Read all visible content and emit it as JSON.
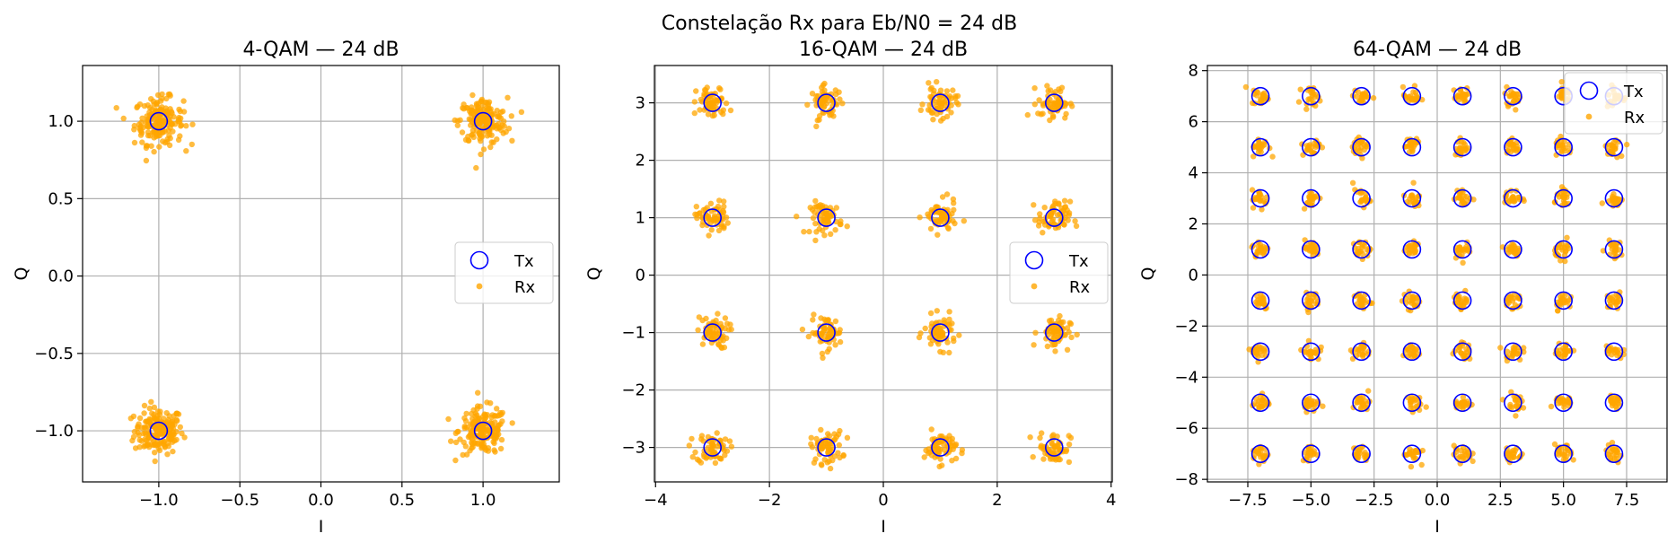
{
  "figure_title": "Constelação Rx para Eb/N0 = 24 dB",
  "chart_data": [
    {
      "type": "scatter",
      "title": "4-QAM — 24 dB",
      "xlabel": "I",
      "ylabel": "Q",
      "xlim": [
        -1.47,
        1.47
      ],
      "ylim": [
        -1.33,
        1.36
      ],
      "xticks": [
        -1.0,
        -0.5,
        0.0,
        0.5,
        1.0
      ],
      "xtick_labels": [
        "−1.0",
        "−0.5",
        "0.0",
        "0.5",
        "1.0"
      ],
      "yticks": [
        -1.0,
        -0.5,
        0.0,
        0.5,
        1.0
      ],
      "ytick_labels": [
        "−1.0",
        "−0.5",
        "0.0",
        "0.5",
        "1.0"
      ],
      "grid": true,
      "legend_position": "center-right",
      "tx_levels": [
        -1,
        1
      ],
      "rx_spread": 0.075,
      "series": [
        {
          "name": "Tx",
          "marker": "open-circle",
          "color": "#0000ff"
        },
        {
          "name": "Rx",
          "marker": "dot",
          "color": "#ffa500"
        }
      ]
    },
    {
      "type": "scatter",
      "title": "16-QAM — 24 dB",
      "xlabel": "I",
      "ylabel": "Q",
      "xlim": [
        -4.02,
        4.02
      ],
      "ylim": [
        -3.6,
        3.65
      ],
      "xticks": [
        -4,
        -2,
        0,
        2,
        4
      ],
      "xtick_labels": [
        "−4",
        "−2",
        "0",
        "2",
        "4"
      ],
      "yticks": [
        -3,
        -2,
        -1,
        0,
        1,
        2,
        3
      ],
      "ytick_labels": [
        "−3",
        "−2",
        "−1",
        "0",
        "1",
        "2",
        "3"
      ],
      "grid": true,
      "legend_position": "center-right",
      "tx_levels": [
        -3,
        -1,
        1,
        3
      ],
      "rx_spread": 0.14,
      "series": [
        {
          "name": "Tx",
          "marker": "open-circle",
          "color": "#0000ff"
        },
        {
          "name": "Rx",
          "marker": "dot",
          "color": "#ffa500"
        }
      ]
    },
    {
      "type": "scatter",
      "title": "64-QAM — 24 dB",
      "xlabel": "I",
      "ylabel": "Q",
      "xlim": [
        -9.1,
        9.1
      ],
      "ylim": [
        -8.1,
        8.2
      ],
      "xticks": [
        -7.5,
        -5.0,
        -2.5,
        0.0,
        2.5,
        5.0,
        7.5
      ],
      "xtick_labels": [
        "−7.5",
        "−5.0",
        "−2.5",
        "0.0",
        "2.5",
        "5.0",
        "7.5"
      ],
      "yticks": [
        -8,
        -6,
        -4,
        -2,
        0,
        2,
        4,
        6,
        8
      ],
      "ytick_labels": [
        "−8",
        "−6",
        "−4",
        "−2",
        "0",
        "2",
        "4",
        "6",
        "8"
      ],
      "grid": true,
      "legend_position": "upper-right",
      "tx_levels": [
        -7,
        -5,
        -3,
        -1,
        1,
        3,
        5,
        7
      ],
      "rx_spread": 0.17,
      "series": [
        {
          "name": "Tx",
          "marker": "open-circle",
          "color": "#0000ff"
        },
        {
          "name": "Rx",
          "marker": "dot",
          "color": "#ffa500"
        }
      ]
    }
  ]
}
